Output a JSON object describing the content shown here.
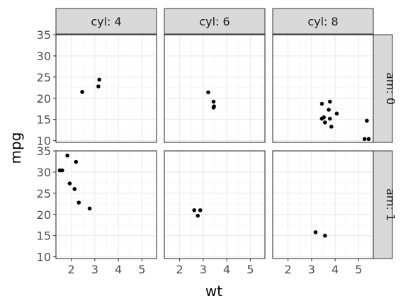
{
  "chart_data": {
    "type": "scatter",
    "facet": "grid",
    "xlabel": "wt",
    "ylabel": "mpg",
    "xlim": [
      1.35,
      5.62
    ],
    "ylim": [
      9.6,
      35.0
    ],
    "x_ticks": [
      2,
      3,
      4,
      5
    ],
    "y_ticks": [
      10,
      15,
      20,
      25,
      30,
      35
    ],
    "grid": true,
    "theme": "bw",
    "col_labels": [
      "cyl: 4",
      "cyl: 6",
      "cyl: 8"
    ],
    "row_labels": [
      "am: 0",
      "am: 1"
    ],
    "panels": [
      {
        "row": 0,
        "col": 0,
        "points": [
          [
            2.465,
            21.5
          ],
          [
            3.15,
            22.8
          ],
          [
            3.19,
            24.4
          ]
        ]
      },
      {
        "row": 0,
        "col": 1,
        "points": [
          [
            3.215,
            21.4
          ],
          [
            3.44,
            19.2
          ],
          [
            3.46,
            18.1
          ],
          [
            3.44,
            17.8
          ]
        ]
      },
      {
        "row": 0,
        "col": 2,
        "points": [
          [
            3.44,
            18.7
          ],
          [
            3.78,
            19.2
          ],
          [
            3.57,
            14.3
          ],
          [
            4.07,
            16.4
          ],
          [
            3.73,
            17.3
          ],
          [
            3.78,
            15.2
          ],
          [
            5.25,
            10.4
          ],
          [
            5.424,
            10.4
          ],
          [
            5.345,
            14.7
          ],
          [
            3.52,
            15.5
          ],
          [
            3.435,
            15.2
          ],
          [
            3.84,
            13.3
          ]
        ]
      },
      {
        "row": 1,
        "col": 0,
        "points": [
          [
            2.32,
            22.8
          ],
          [
            2.2,
            32.4
          ],
          [
            1.615,
            30.4
          ],
          [
            1.835,
            33.9
          ],
          [
            1.935,
            27.3
          ],
          [
            2.14,
            26.0
          ],
          [
            1.513,
            30.4
          ],
          [
            2.78,
            21.4
          ]
        ]
      },
      {
        "row": 1,
        "col": 1,
        "points": [
          [
            2.62,
            21.0
          ],
          [
            2.875,
            21.0
          ],
          [
            2.77,
            19.7
          ]
        ]
      },
      {
        "row": 1,
        "col": 2,
        "points": [
          [
            3.17,
            15.8
          ],
          [
            3.57,
            15.0
          ]
        ]
      }
    ]
  },
  "colors": {
    "point": "#000000",
    "strip_fill": "#d9d9d9",
    "panel_border": "#333333",
    "grid_major": "#ebebeb",
    "grid_minor": "#f5f5f5",
    "tick_label": "#4d4d4d"
  }
}
